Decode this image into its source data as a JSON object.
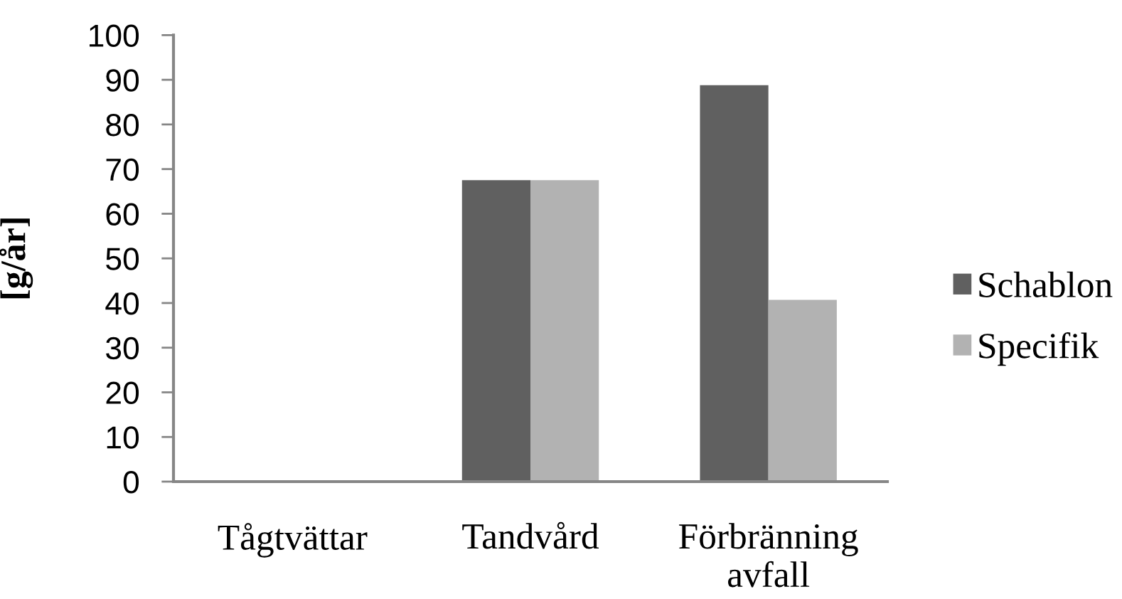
{
  "chart_data": {
    "type": "bar",
    "categories": [
      "Tågtvättar",
      "Tandvård",
      "Förbränning\navfall"
    ],
    "series": [
      {
        "name": "Schablon",
        "color": "#606060",
        "values": [
          0,
          67.5,
          88.8
        ]
      },
      {
        "name": "Specifik",
        "color": "#b2b2b2",
        "values": [
          0,
          67.5,
          40.7
        ]
      }
    ],
    "ylabel": "[g/år]",
    "ylim": [
      0,
      100
    ],
    "yticks": [
      0,
      10,
      20,
      30,
      40,
      50,
      60,
      70,
      80,
      90,
      100
    ],
    "grid": false,
    "legend": "right"
  }
}
